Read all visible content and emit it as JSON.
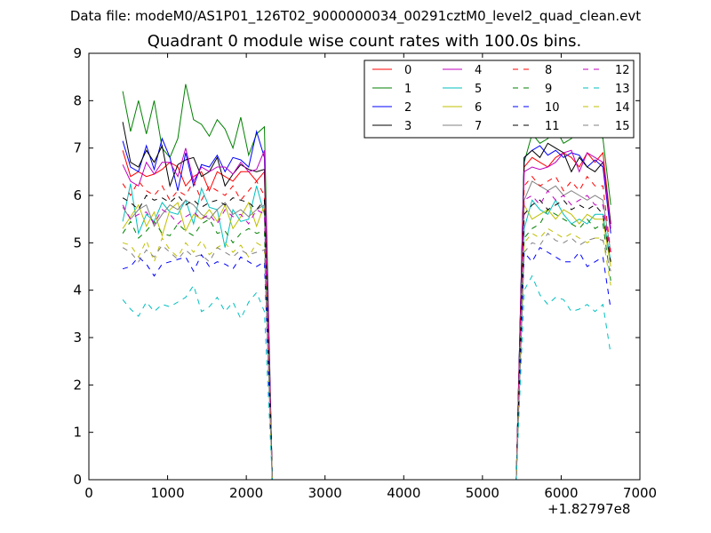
{
  "figure": {
    "suptitle": "Data file: modeM0/AS1P01_126T02_9000000034_00291cztM0_level2_quad_clean.evt",
    "x_offset_label": "+1.82797e8"
  },
  "chart_data": {
    "type": "line",
    "title": "Quadrant 0 module wise count rates with 100.0s bins.",
    "xlabel": "",
    "ylabel": "",
    "xlim": [
      0,
      7000
    ],
    "ylim": [
      0,
      9
    ],
    "x_ticks": [
      "0",
      "1000",
      "2000",
      "3000",
      "4000",
      "5000",
      "6000",
      "7000"
    ],
    "y_ticks": [
      "0",
      "1",
      "2",
      "3",
      "4",
      "5",
      "6",
      "7",
      "8",
      "9"
    ],
    "legend_position": "top-right",
    "grid": false,
    "x": [
      430,
      530,
      630,
      730,
      830,
      930,
      1030,
      1130,
      1230,
      1330,
      1430,
      1530,
      1630,
      1730,
      1830,
      1930,
      2030,
      2130,
      2230,
      2330,
      2430,
      5430,
      5530,
      5630,
      5730,
      5830,
      5930,
      6030,
      6130,
      6230,
      6330,
      6430,
      6530,
      6630
    ],
    "series": [
      {
        "name": "0",
        "color": "#ff0000",
        "dash": "solid",
        "values": [
          6.95,
          6.4,
          6.5,
          6.4,
          6.45,
          6.55,
          6.7,
          6.6,
          6.2,
          6.4,
          6.5,
          6.1,
          6.5,
          6.4,
          6.3,
          6.5,
          6.5,
          6.3,
          6.5,
          0,
          0,
          0,
          6.6,
          6.8,
          6.7,
          6.6,
          6.8,
          6.9,
          6.8,
          6.6,
          6.9,
          6.7,
          6.9,
          5.4
        ]
      },
      {
        "name": "1",
        "color": "#008000",
        "dash": "solid",
        "values": [
          8.2,
          7.35,
          8.0,
          7.3,
          8.0,
          7.0,
          6.8,
          7.2,
          8.35,
          7.6,
          7.5,
          7.25,
          7.6,
          7.4,
          7.0,
          7.65,
          6.85,
          7.3,
          7.45,
          0,
          0,
          0,
          6.7,
          7.3,
          7.1,
          7.2,
          7.4,
          7.1,
          7.2,
          7.4,
          7.3,
          7.4,
          7.2,
          5.8
        ]
      },
      {
        "name": "2",
        "color": "#0000ff",
        "dash": "solid",
        "values": [
          7.15,
          6.6,
          6.5,
          7.05,
          6.55,
          7.2,
          6.8,
          6.1,
          6.9,
          6.2,
          6.65,
          6.6,
          6.85,
          6.5,
          6.8,
          6.75,
          6.6,
          7.35,
          6.8,
          0,
          0,
          0,
          6.8,
          6.95,
          7.05,
          6.85,
          6.95,
          6.8,
          6.9,
          6.85,
          6.6,
          6.75,
          6.6,
          5.2
        ]
      },
      {
        "name": "3",
        "color": "#000000",
        "dash": "solid",
        "values": [
          7.55,
          6.7,
          6.6,
          6.95,
          6.7,
          7.05,
          6.2,
          6.65,
          6.75,
          6.8,
          6.4,
          6.5,
          6.8,
          6.2,
          6.45,
          6.65,
          6.55,
          6.5,
          6.55,
          0,
          0,
          0,
          6.8,
          6.95,
          6.8,
          7.1,
          7.0,
          6.9,
          6.5,
          6.8,
          6.6,
          6.5,
          6.7,
          5.4
        ]
      },
      {
        "name": "4",
        "color": "#bf00bf",
        "dash": "solid",
        "values": [
          6.65,
          6.3,
          6.2,
          6.7,
          6.45,
          6.7,
          6.7,
          6.4,
          7.0,
          6.3,
          6.6,
          6.5,
          6.6,
          6.6,
          6.45,
          6.7,
          6.5,
          6.55,
          6.95,
          0,
          0,
          0,
          6.5,
          6.6,
          6.55,
          6.6,
          6.7,
          6.9,
          6.95,
          6.5,
          6.9,
          6.8,
          6.7,
          5.3
        ]
      },
      {
        "name": "5",
        "color": "#00bfbf",
        "dash": "solid",
        "values": [
          5.45,
          6.25,
          5.2,
          5.6,
          5.45,
          5.85,
          5.65,
          5.6,
          5.9,
          5.4,
          6.15,
          5.75,
          5.7,
          4.9,
          5.7,
          5.45,
          5.5,
          6.2,
          5.6,
          0,
          0,
          0,
          5.3,
          5.9,
          5.7,
          5.6,
          5.9,
          5.6,
          5.4,
          5.5,
          5.4,
          5.6,
          5.6,
          4.6
        ]
      },
      {
        "name": "6",
        "color": "#bfbf00",
        "dash": "solid",
        "values": [
          5.3,
          5.55,
          5.8,
          5.35,
          5.65,
          5.15,
          5.7,
          5.85,
          5.25,
          5.6,
          5.5,
          5.7,
          5.45,
          5.8,
          5.3,
          5.55,
          5.85,
          5.35,
          5.8,
          0,
          0,
          0,
          5.8,
          5.5,
          5.6,
          5.7,
          5.5,
          5.7,
          5.6,
          5.4,
          5.6,
          5.5,
          5.5,
          4.5
        ]
      },
      {
        "name": "7",
        "color": "#808080",
        "dash": "solid",
        "values": [
          5.75,
          5.5,
          5.7,
          5.8,
          5.35,
          5.6,
          5.8,
          5.7,
          5.9,
          5.8,
          5.6,
          5.5,
          5.7,
          5.85,
          5.6,
          5.7,
          5.55,
          5.7,
          5.8,
          0,
          0,
          0,
          5.9,
          6.3,
          6.2,
          6.1,
          6.2,
          6.0,
          6.1,
          6.0,
          5.9,
          6.0,
          5.9,
          4.8
        ]
      },
      {
        "name": "8",
        "color": "#ff0000",
        "dash": "dashed",
        "values": [
          6.25,
          6.0,
          6.3,
          6.1,
          6.0,
          6.2,
          5.9,
          6.1,
          6.0,
          6.3,
          5.9,
          6.2,
          6.1,
          6.0,
          6.2,
          5.9,
          6.1,
          6.3,
          6.0,
          0,
          0,
          0,
          6.2,
          6.4,
          6.2,
          6.3,
          6.4,
          6.1,
          6.3,
          6.1,
          6.4,
          6.2,
          6.2,
          4.8
        ]
      },
      {
        "name": "9",
        "color": "#008000",
        "dash": "dashed",
        "values": [
          5.2,
          5.45,
          5.1,
          5.25,
          5.45,
          5.2,
          5.15,
          5.4,
          5.25,
          5.15,
          5.4,
          5.5,
          5.2,
          5.25,
          5.0,
          5.2,
          5.3,
          5.2,
          5.25,
          0,
          0,
          0,
          5.1,
          5.3,
          5.4,
          5.7,
          5.6,
          5.5,
          5.4,
          5.3,
          5.5,
          5.3,
          5.4,
          4.2
        ]
      },
      {
        "name": "10",
        "color": "#0000ff",
        "dash": "dashed",
        "values": [
          4.45,
          4.5,
          4.7,
          4.55,
          4.3,
          4.55,
          4.6,
          4.65,
          4.7,
          4.4,
          4.75,
          4.5,
          4.6,
          4.55,
          4.45,
          4.7,
          4.6,
          4.5,
          4.6,
          0,
          0,
          0,
          4.8,
          4.6,
          4.9,
          4.8,
          4.7,
          4.6,
          4.6,
          4.8,
          4.5,
          4.6,
          4.7,
          3.6
        ]
      },
      {
        "name": "11",
        "color": "#000000",
        "dash": "dashed",
        "values": [
          5.95,
          5.85,
          5.7,
          6.0,
          5.9,
          5.95,
          5.85,
          6.0,
          5.8,
          5.9,
          5.75,
          5.85,
          5.9,
          5.8,
          5.95,
          5.9,
          5.85,
          5.7,
          5.9,
          0,
          0,
          0,
          5.6,
          5.8,
          5.9,
          5.7,
          5.8,
          5.9,
          5.7,
          5.8,
          5.7,
          5.8,
          5.6,
          4.6
        ]
      },
      {
        "name": "12",
        "color": "#bf00bf",
        "dash": "dashed",
        "values": [
          5.8,
          5.5,
          5.6,
          5.65,
          5.4,
          5.7,
          5.6,
          5.4,
          5.55,
          5.65,
          5.5,
          5.6,
          5.4,
          5.7,
          5.55,
          5.6,
          5.4,
          5.7,
          5.6,
          0,
          0,
          0,
          5.9,
          6.0,
          5.8,
          6.1,
          5.9,
          6.0,
          5.8,
          5.9,
          6.0,
          5.8,
          5.8,
          4.7
        ]
      },
      {
        "name": "13",
        "color": "#00bfbf",
        "dash": "dashed",
        "values": [
          3.8,
          3.6,
          3.45,
          3.75,
          3.55,
          3.7,
          3.65,
          3.75,
          3.85,
          4.1,
          3.55,
          3.65,
          3.85,
          3.55,
          3.75,
          3.4,
          3.75,
          3.95,
          3.55,
          0,
          0,
          0,
          4.0,
          4.3,
          3.9,
          3.7,
          3.85,
          3.8,
          3.55,
          3.6,
          3.7,
          3.55,
          3.7,
          2.65
        ]
      },
      {
        "name": "14",
        "color": "#bfbf00",
        "dash": "dashed",
        "values": [
          5.0,
          4.95,
          4.7,
          5.05,
          4.6,
          5.1,
          4.85,
          4.7,
          5.0,
          4.8,
          5.05,
          4.75,
          4.9,
          5.0,
          4.8,
          4.95,
          4.7,
          5.0,
          4.9,
          0,
          0,
          0,
          5.0,
          5.2,
          5.1,
          5.3,
          5.2,
          5.1,
          5.2,
          5.1,
          5.0,
          5.1,
          5.1,
          4.1
        ]
      },
      {
        "name": "15",
        "color": "#808080",
        "dash": "dashed",
        "values": [
          4.9,
          4.8,
          4.6,
          4.85,
          4.7,
          4.95,
          4.8,
          4.65,
          4.85,
          4.7,
          4.75,
          4.6,
          4.9,
          4.8,
          4.7,
          4.85,
          4.75,
          4.8,
          4.85,
          0,
          0,
          0,
          4.8,
          5.0,
          4.95,
          5.2,
          5.05,
          5.0,
          5.1,
          4.95,
          5.05,
          5.1,
          5.05,
          4.4
        ]
      }
    ]
  }
}
